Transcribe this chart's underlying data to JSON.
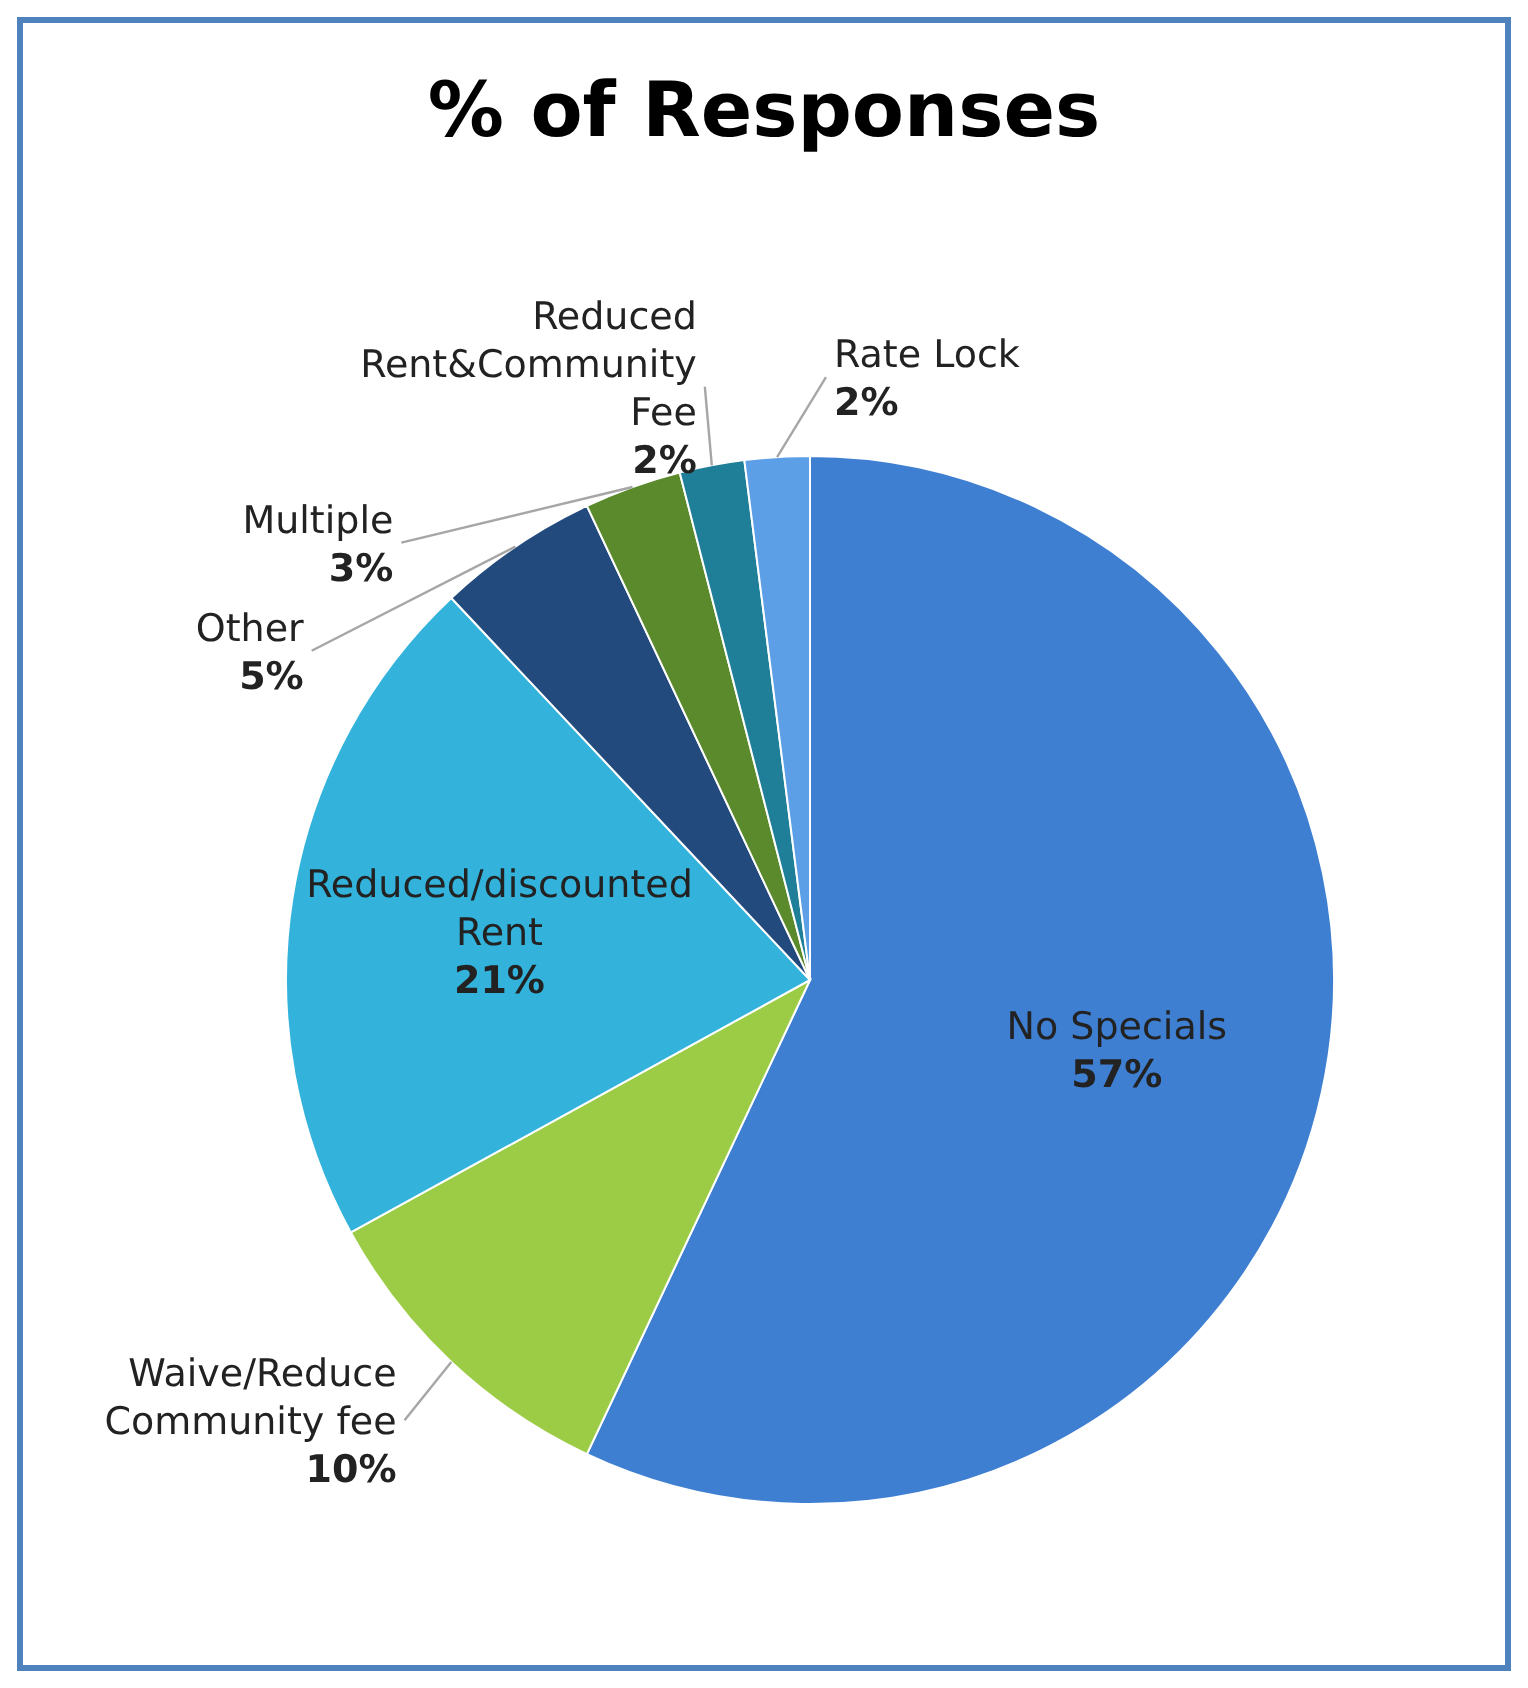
{
  "chart_data": {
    "type": "pie",
    "title": "% of Responses",
    "categories": [
      "No Specials",
      "Waive/Reduce Community fee",
      "Reduced/discounted Rent",
      "Other",
      "Multiple",
      "Reduced Rent&Community Fee",
      "Rate Lock"
    ],
    "values": [
      57,
      10,
      21,
      5,
      3,
      2,
      2
    ],
    "value_labels": [
      "57%",
      "10%",
      "21%",
      "5%",
      "3%",
      "2%",
      "2%"
    ],
    "colors": [
      "#3f7fd2",
      "#9ccc45",
      "#33b3dc",
      "#234a7c",
      "#5a8a2c",
      "#1f7e98",
      "#5c9fe6"
    ]
  }
}
